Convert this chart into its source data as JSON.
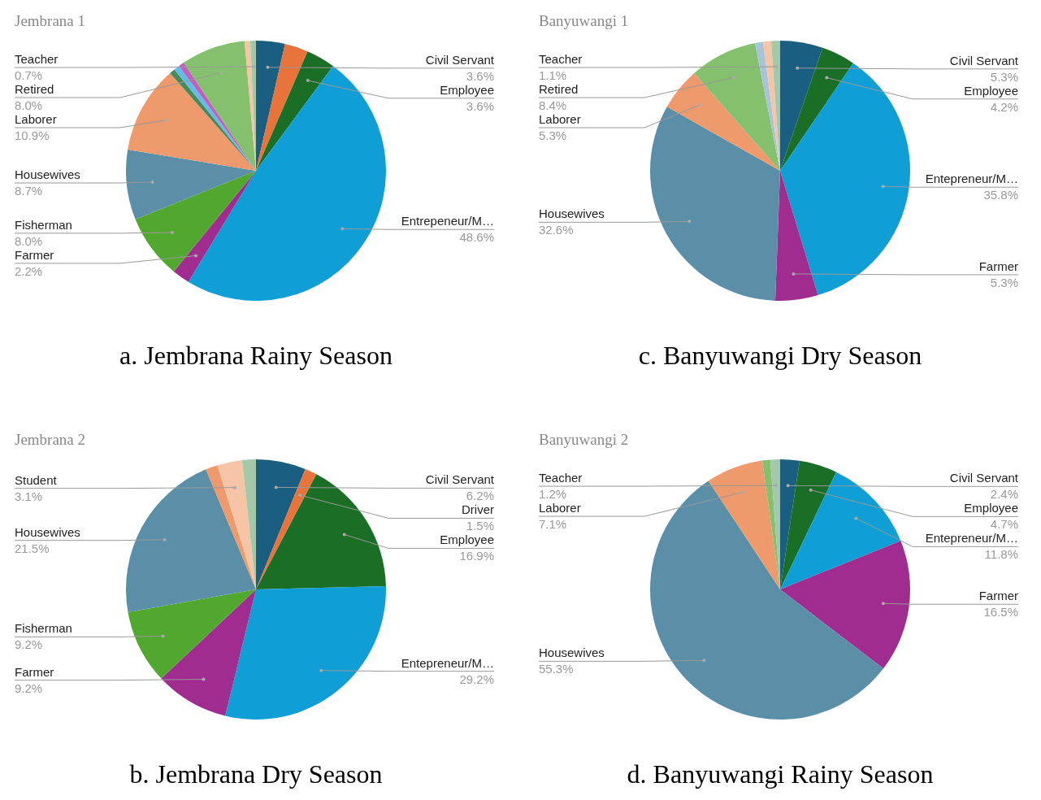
{
  "chart_data": [
    {
      "type": "pie",
      "title": "Jembrana 1",
      "annotations": [
        "a. Jembrana Rainy Season"
      ],
      "categories": [
        "Civil Servant",
        null,
        "Employee",
        "Entrepeneur/M…",
        "Farmer",
        "Fisherman",
        "Housewives",
        "Laborer",
        null,
        null,
        null,
        "Retired",
        null,
        "Teacher"
      ],
      "values": [
        3.6,
        2.9,
        3.6,
        48.6,
        2.2,
        8.0,
        8.7,
        10.9,
        0.7,
        0.7,
        0.7,
        8.0,
        0.7,
        0.7
      ],
      "value_labels": [
        "3.6%",
        null,
        "3.6%",
        "48.6%",
        "2.2%",
        "8.0%",
        "8.7%",
        "10.9%",
        null,
        null,
        null,
        "8.0%",
        null,
        "0.7%"
      ],
      "colors": [
        "#1a5f82",
        "#e8743b",
        "#1b6e26",
        "#0f9fd6",
        "#a02c90",
        "#52a82f",
        "#5b8fa8",
        "#ee9a6c",
        "#4a8a5a",
        "#61bde8",
        "#c060c0",
        "#85c06e",
        "#f6c4a6",
        "#a3c9a8"
      ]
    },
    {
      "type": "pie",
      "title": "Banyuwangi 1",
      "annotations": [
        "c. Banyuwangi Dry Season"
      ],
      "categories": [
        "Civil Servant",
        "Employee",
        "Entepreneur/M…",
        "Farmer",
        "Housewives",
        "Laborer",
        "Retired",
        null,
        null,
        "Teacher"
      ],
      "values": [
        5.3,
        4.2,
        35.8,
        5.3,
        32.6,
        5.3,
        8.4,
        1.0,
        1.0,
        1.1
      ],
      "value_labels": [
        "5.3%",
        "4.2%",
        "35.8%",
        "5.3%",
        "32.6%",
        "5.3%",
        "8.4%",
        null,
        null,
        "1.1%"
      ],
      "colors": [
        "#1a5f82",
        "#1b6e26",
        "#0f9fd6",
        "#a02c90",
        "#5b8fa8",
        "#ee9a6c",
        "#85c06e",
        "#a8c4d8",
        "#f6c4a6",
        "#a3c9a8"
      ]
    },
    {
      "type": "pie",
      "title": "Jembrana 2",
      "annotations": [
        "b. Jembrana Dry Season"
      ],
      "categories": [
        "Civil Servant",
        "Driver",
        "Employee",
        "Entepreneur/M…",
        "Farmer",
        "Fisherman",
        "Housewives",
        null,
        "Student",
        null
      ],
      "values": [
        6.2,
        1.5,
        16.9,
        29.2,
        9.2,
        9.2,
        21.5,
        1.5,
        3.1,
        1.7
      ],
      "value_labels": [
        "6.2%",
        "1.5%",
        "16.9%",
        "29.2%",
        "9.2%",
        "9.2%",
        "21.5%",
        null,
        "3.1%",
        null
      ],
      "colors": [
        "#1a5f82",
        "#e8743b",
        "#1b6e26",
        "#0f9fd6",
        "#a02c90",
        "#52a82f",
        "#5b8fa8",
        "#ee9a6c",
        "#f6c4a6",
        "#a3c9a8"
      ]
    },
    {
      "type": "pie",
      "title": "Banyuwangi 2",
      "annotations": [
        "d. Banyuwangi Rainy Season"
      ],
      "categories": [
        "Civil Servant",
        "Employee",
        "Entepreneur/M…",
        "Farmer",
        "Housewives",
        "Laborer",
        null,
        "Teacher"
      ],
      "values": [
        2.4,
        4.7,
        11.8,
        16.5,
        55.3,
        7.1,
        1.0,
        1.2
      ],
      "value_labels": [
        "2.4%",
        "4.7%",
        "11.8%",
        "16.5%",
        "55.3%",
        "7.1%",
        null,
        "1.2%"
      ],
      "colors": [
        "#1a5f82",
        "#1b6e26",
        "#0f9fd6",
        "#a02c90",
        "#5b8fa8",
        "#ee9a6c",
        "#85c06e",
        "#a3c9a8"
      ]
    }
  ]
}
